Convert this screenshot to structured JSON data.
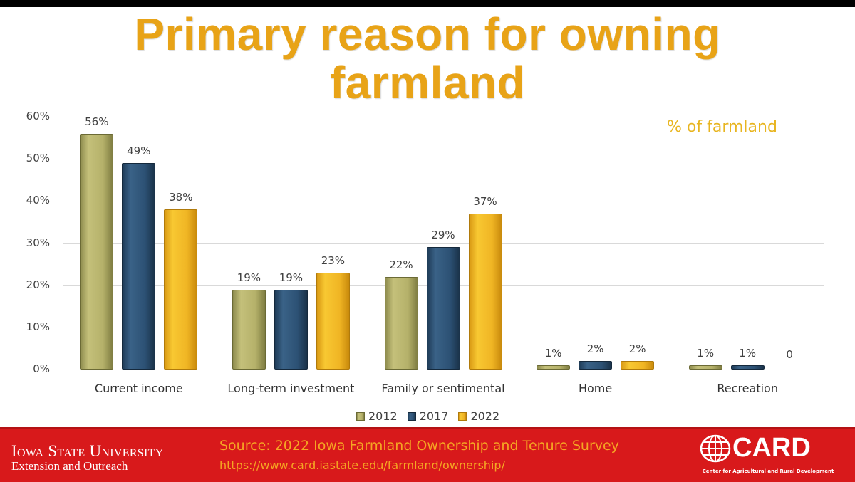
{
  "title": {
    "line1": "Primary reason for owning",
    "line2": "farmland"
  },
  "subtitle": "% of farmland",
  "y_ticks": [
    "0%",
    "10%",
    "20%",
    "30%",
    "40%",
    "50%",
    "60%"
  ],
  "categories": [
    "Current income",
    "Long-term investment",
    "Family or sentimental",
    "Home",
    "Recreation"
  ],
  "labels": {
    "2012": [
      "56%",
      "19%",
      "22%",
      "1%",
      "1%"
    ],
    "2017": [
      "49%",
      "19%",
      "29%",
      "2%",
      "1%"
    ],
    "2022": [
      "38%",
      "23%",
      "37%",
      "2%",
      "0"
    ]
  },
  "legend": [
    "2012",
    "2017",
    "2022"
  ],
  "colors": {
    "2012": "#b5b16a",
    "2017": "#2c5174",
    "2022": "#f0b524",
    "title": "#e8a317",
    "footer": "#d8191b"
  },
  "footer": {
    "isu_line1": "Iowa State University",
    "isu_line2": "Extension and Outreach",
    "source_line1": "Source: 2022 Iowa Farmland Ownership and Tenure Survey",
    "source_line2": "https://www.card.iastate.edu/farmland/ownership/",
    "card_logo": "CARD",
    "card_sub": "Center for Agricultural and Rural Development"
  },
  "chart_data": {
    "type": "bar",
    "title": "Primary reason for owning farmland",
    "subtitle": "% of farmland",
    "categories": [
      "Current income",
      "Long-term investment",
      "Family or sentimental",
      "Home",
      "Recreation"
    ],
    "series": [
      {
        "name": "2012",
        "values": [
          56,
          19,
          22,
          1,
          1
        ]
      },
      {
        "name": "2017",
        "values": [
          49,
          19,
          29,
          2,
          1
        ]
      },
      {
        "name": "2022",
        "values": [
          38,
          23,
          37,
          2,
          0
        ]
      }
    ],
    "xlabel": "",
    "ylabel": "",
    "ylim": [
      0,
      60
    ],
    "y_ticks": [
      "0%",
      "10%",
      "20%",
      "30%",
      "40%",
      "50%",
      "60%"
    ],
    "grid": true,
    "legend_position": "bottom",
    "source": "Source: 2022 Iowa Farmland Ownership and Tenure Survey"
  }
}
